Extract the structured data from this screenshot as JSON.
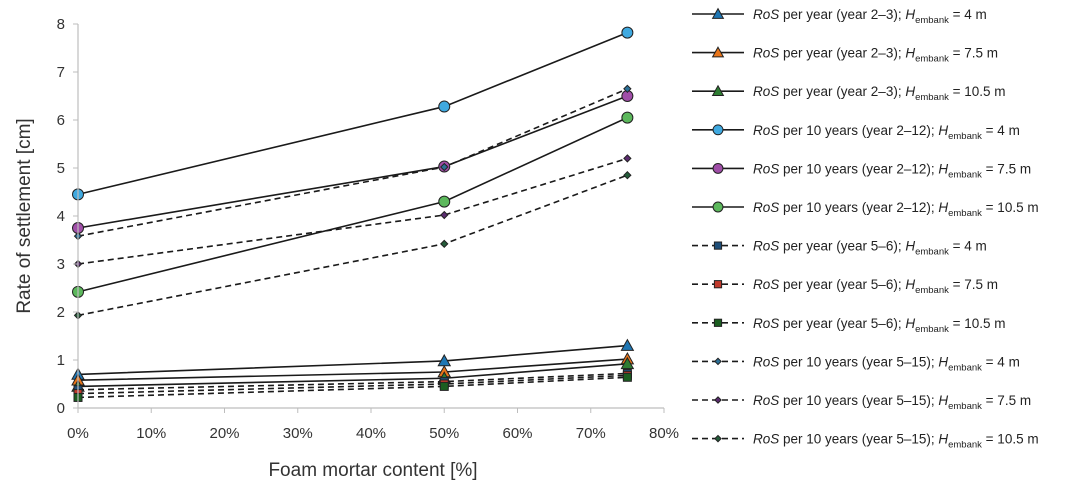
{
  "chart_data": {
    "type": "line",
    "xlabel": "Foam mortar content [%]",
    "ylabel": "Rate of settlement [cm]",
    "xlim": [
      0,
      80
    ],
    "ylim": [
      0,
      8
    ],
    "x_tick_labels": [
      "0%",
      "10%",
      "20%",
      "30%",
      "40%",
      "50%",
      "60%",
      "70%",
      "80%"
    ],
    "y_tick_labels": [
      "0",
      "1",
      "2",
      "3",
      "4",
      "5",
      "6",
      "7",
      "8"
    ],
    "grid": false,
    "legend_position": "right",
    "x": [
      0,
      50,
      75
    ],
    "series": [
      {
        "name": "RoS per year (year 2–3); Hembank = 4 m",
        "legend": {
          "main": "per year (year 2–3); ",
          "tail": " = 4 m"
        },
        "values": [
          0.7,
          0.98,
          1.3
        ],
        "line": "solid",
        "marker": "triangle",
        "color": "#1f77b4"
      },
      {
        "name": "RoS per year (year 2–3); Hembank = 7.5 m",
        "legend": {
          "main": "per year (year 2–3); ",
          "tail": " = 7.5 m"
        },
        "values": [
          0.58,
          0.75,
          1.02
        ],
        "line": "solid",
        "marker": "triangle",
        "color": "#e8751a"
      },
      {
        "name": "RoS per year (year 2–3); Hembank = 10.5 m",
        "legend": {
          "main": "per year (year 2–3); ",
          "tail": " = 10.5 m"
        },
        "values": [
          0.45,
          0.62,
          0.92
        ],
        "line": "solid",
        "marker": "triangle",
        "color": "#2e7d32"
      },
      {
        "name": "RoS per 10 years (year 2–12); Hembank = 4 m",
        "legend": {
          "main": "per 10 years (year 2–12); ",
          "tail": " = 4 m"
        },
        "values": [
          4.45,
          6.28,
          7.82
        ],
        "line": "solid",
        "marker": "circle",
        "color": "#3fa9e0"
      },
      {
        "name": "RoS per 10 years (year 2–12); Hembank = 7.5 m",
        "legend": {
          "main": "per 10 years (year 2–12); ",
          "tail": " = 7.5 m"
        },
        "values": [
          3.75,
          5.03,
          6.5
        ],
        "line": "solid",
        "marker": "circle",
        "color": "#a04ea8"
      },
      {
        "name": "RoS per 10 years (year 2–12); Hembank = 10.5 m",
        "legend": {
          "main": "per 10 years (year 2–12); ",
          "tail": " = 10.5 m"
        },
        "values": [
          2.42,
          4.3,
          6.05
        ],
        "line": "solid",
        "marker": "circle",
        "color": "#5cb85c"
      },
      {
        "name": "RoS per year (year 5–6); Hembank = 4 m",
        "legend": {
          "main": "per year (year 5–6); ",
          "tail": " = 4 m"
        },
        "values": [
          0.38,
          0.55,
          0.72
        ],
        "line": "dashed",
        "marker": "square",
        "color": "#1e4e79"
      },
      {
        "name": "RoS per year (year 5–6); Hembank = 7.5 m",
        "legend": {
          "main": "per year (year 5–6); ",
          "tail": " = 7.5 m"
        },
        "values": [
          0.3,
          0.5,
          0.68
        ],
        "line": "dashed",
        "marker": "square",
        "color": "#c0392b"
      },
      {
        "name": "RoS per year (year 5–6); Hembank = 10.5 m",
        "legend": {
          "main": "per year (year 5–6); ",
          "tail": " = 10.5 m"
        },
        "values": [
          0.22,
          0.45,
          0.64
        ],
        "line": "dashed",
        "marker": "square",
        "color": "#1b5e20"
      },
      {
        "name": "RoS per 10 years (year 5–15); Hembank = 4 m",
        "legend": {
          "main": "per 10 years (year 5–15); ",
          "tail": " = 4 m"
        },
        "values": [
          3.58,
          5.02,
          6.65
        ],
        "line": "dashed",
        "marker": "diamond",
        "color": "#2a6f97"
      },
      {
        "name": "RoS per 10 years (year 5–15); Hembank = 7.5 m",
        "legend": {
          "main": "per 10 years (year 5–15); ",
          "tail": " = 7.5 m"
        },
        "values": [
          3.0,
          4.02,
          5.2
        ],
        "line": "dashed",
        "marker": "diamond",
        "color": "#5b2c6f"
      },
      {
        "name": "RoS per 10 years (year 5–15); Hembank = 10.5 m",
        "legend": {
          "main": "per 10 years (year 5–15); ",
          "tail": " = 10.5 m"
        },
        "values": [
          1.93,
          3.42,
          4.85
        ],
        "line": "dashed",
        "marker": "diamond",
        "color": "#245c3a"
      }
    ],
    "legend_labels": {
      "ros": "RoS",
      "h": "H",
      "sub": "embank"
    }
  }
}
